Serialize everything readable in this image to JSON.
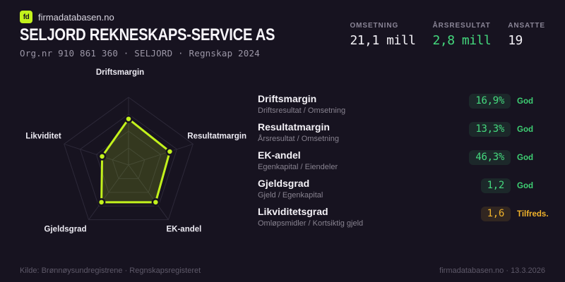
{
  "brand": {
    "logo": "fd",
    "name": "firmadatabasen.no"
  },
  "header": {
    "title": "SELJORD REKNESKAPS-SERVICE AS",
    "subtitle": "Org.nr 910 861 360  ·  SELJORD  ·  Regnskap 2024"
  },
  "stats": [
    {
      "label": "OMSETNING",
      "value": "21,1 mill"
    },
    {
      "label": "ÅRSRESULTAT",
      "value": "2,8 mill"
    },
    {
      "label": "ANSATTE",
      "value": "19"
    }
  ],
  "chart_data": {
    "type": "radar",
    "categories": [
      "Driftsmargin",
      "Resultatmargin",
      "EK-andel",
      "Gjeldsgrad",
      "Likviditet"
    ],
    "values": [
      0.68,
      0.64,
      0.68,
      0.68,
      0.41
    ],
    "scale": {
      "min": 0,
      "max": 1,
      "rings": 4
    },
    "legend": "none",
    "grid": true,
    "line_color": "#c3f21c",
    "fill_color": "#c3f21c",
    "fill_opacity": 0.17,
    "grid_color": "#2d2939",
    "dot_color": "#c3f21c"
  },
  "metrics": [
    {
      "name": "Driftsmargin",
      "formula": "Driftsresultat / Omsetning",
      "value": "16,9%",
      "status": "God",
      "tone": "good"
    },
    {
      "name": "Resultatmargin",
      "formula": "Årsresultat / Omsetning",
      "value": "13,3%",
      "status": "God",
      "tone": "good"
    },
    {
      "name": "EK-andel",
      "formula": "Egenkapital / Eiendeler",
      "value": "46,3%",
      "status": "God",
      "tone": "good"
    },
    {
      "name": "Gjeldsgrad",
      "formula": "Gjeld / Egenkapital",
      "value": "1,2",
      "status": "God",
      "tone": "good"
    },
    {
      "name": "Likviditetsgrad",
      "formula": "Omløpsmidler / Kortsiktig gjeld",
      "value": "1,6",
      "status": "Tilfreds.",
      "tone": "warn"
    }
  ],
  "footer": {
    "source": "Kilde: Brønnøysundregistrene · Regnskapsregisteret",
    "attribution": "firmadatabasen.no · 13.3.2026"
  },
  "colors": {
    "background": "#171320",
    "accent_lime": "#c3f21c",
    "good_green": "#45d97e",
    "warn_amber": "#f1b32b",
    "text_primary": "#f2f0f5",
    "text_muted": "#8a8596"
  }
}
